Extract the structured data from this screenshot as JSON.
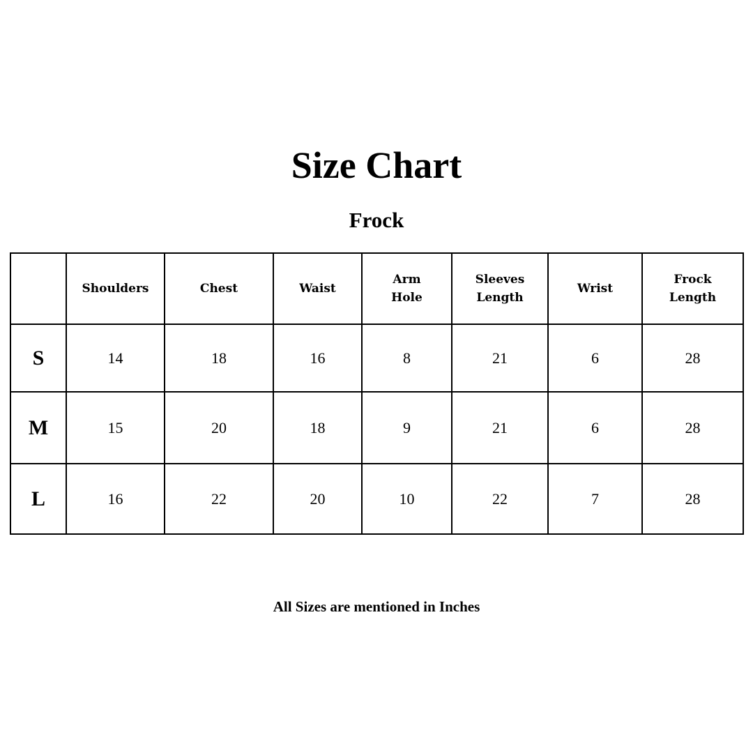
{
  "title": "Size Chart",
  "subtitle": "Frock",
  "table": {
    "headers": [
      "",
      "Shoulders",
      "Chest",
      "Waist",
      "Arm Hole",
      "Sleeves Length",
      "Wrist",
      "Frock Length"
    ],
    "rows": [
      {
        "size": "S",
        "values": [
          "14",
          "18",
          "16",
          "8",
          "21",
          "6",
          "28"
        ]
      },
      {
        "size": "M",
        "values": [
          "15",
          "20",
          "18",
          "9",
          "21",
          "6",
          "28"
        ]
      },
      {
        "size": "L",
        "values": [
          "16",
          "22",
          "20",
          "10",
          "22",
          "7",
          "28"
        ]
      }
    ]
  },
  "footer": "All Sizes are mentioned in Inches"
}
